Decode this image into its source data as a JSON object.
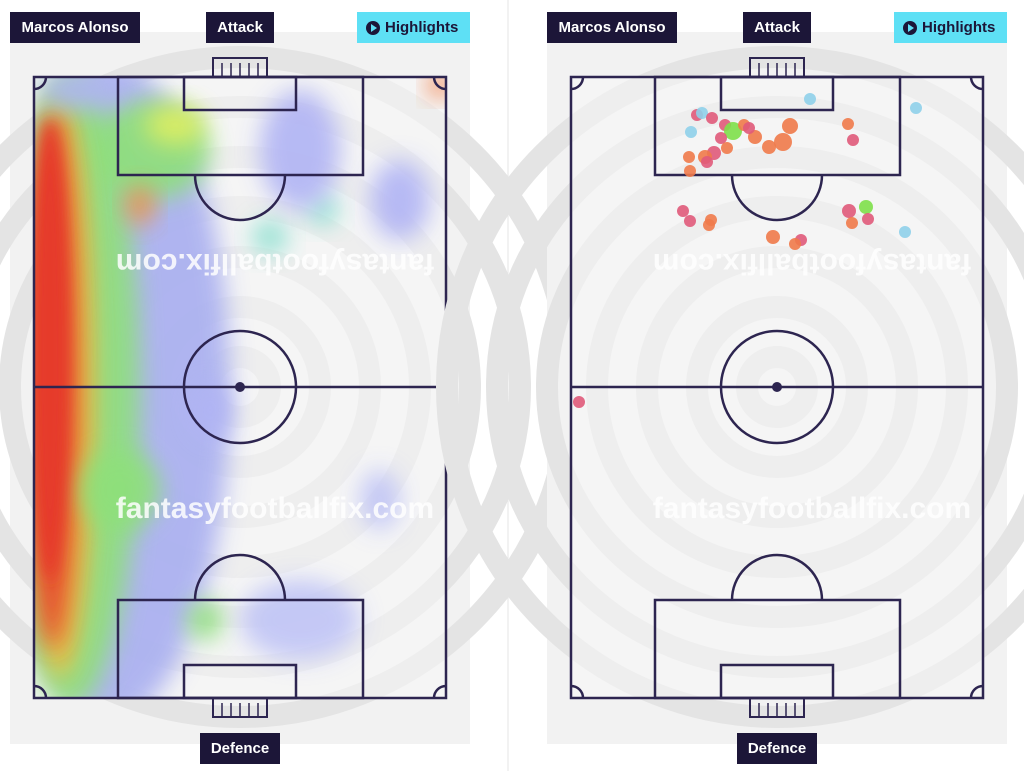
{
  "panels": [
    {
      "player": "Marcos Alonso",
      "top_label": "Attack",
      "button": "Highlights",
      "bottom_label": "Defence",
      "watermark": "fantasyfootballfix.com"
    },
    {
      "player": "Marcos Alonso",
      "top_label": "Attack",
      "button": "Highlights",
      "bottom_label": "Defence",
      "watermark": "fantasyfootballfix.com"
    }
  ]
}
